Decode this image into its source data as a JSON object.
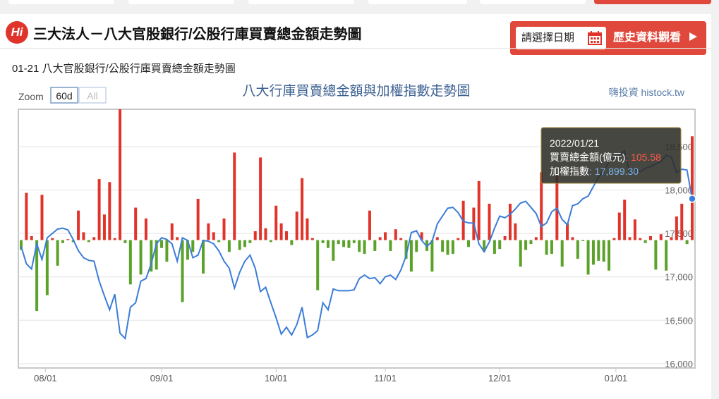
{
  "header": {
    "logo": "Hi",
    "title": "三大法人－八大官股銀行/公股行庫買賣總金額走勢圖",
    "date_picker": "請選擇日期",
    "history_button": "歷史資料觀看"
  },
  "subtitle": "01-21 八大官股銀行/公股行庫買賣總金額走勢圖",
  "chart_data": {
    "type": "combo",
    "title": "八大行庫買賣總金額與加權指數走勢圖",
    "credit": "嗨投資 histock.tw",
    "zoom": {
      "label": "Zoom",
      "buttons": [
        "60d",
        "All"
      ]
    },
    "x": [
      "2021/07/26",
      "2021/07/27",
      "2021/07/28",
      "2021/07/29",
      "2021/07/30",
      "2021/08/02",
      "2021/08/03",
      "2021/08/04",
      "2021/08/05",
      "2021/08/06",
      "2021/08/09",
      "2021/08/10",
      "2021/08/11",
      "2021/08/12",
      "2021/08/13",
      "2021/08/16",
      "2021/08/17",
      "2021/08/18",
      "2021/08/19",
      "2021/08/20",
      "2021/08/23",
      "2021/08/24",
      "2021/08/25",
      "2021/08/26",
      "2021/08/27",
      "2021/08/30",
      "2021/08/31",
      "2021/09/01",
      "2021/09/02",
      "2021/09/03",
      "2021/09/06",
      "2021/09/07",
      "2021/09/08",
      "2021/09/09",
      "2021/09/10",
      "2021/09/13",
      "2021/09/14",
      "2021/09/15",
      "2021/09/16",
      "2021/09/17",
      "2021/09/20",
      "2021/09/21",
      "2021/09/22",
      "2021/09/23",
      "2021/09/24",
      "2021/09/27",
      "2021/09/28",
      "2021/09/29",
      "2021/09/30",
      "2021/10/01",
      "2021/10/04",
      "2021/10/05",
      "2021/10/06",
      "2021/10/07",
      "2021/10/08",
      "2021/10/11",
      "2021/10/12",
      "2021/10/13",
      "2021/10/14",
      "2021/10/15",
      "2021/10/18",
      "2021/10/19",
      "2021/10/20",
      "2021/10/21",
      "2021/10/22",
      "2021/10/25",
      "2021/10/26",
      "2021/10/27",
      "2021/10/28",
      "2021/10/29",
      "2021/11/01",
      "2021/11/02",
      "2021/11/03",
      "2021/11/04",
      "2021/11/05",
      "2021/11/08",
      "2021/11/09",
      "2021/11/10",
      "2021/11/11",
      "2021/11/12",
      "2021/11/15",
      "2021/11/16",
      "2021/11/17",
      "2021/11/18",
      "2021/11/19",
      "2021/11/22",
      "2021/11/23",
      "2021/11/24",
      "2021/11/25",
      "2021/11/26",
      "2021/11/29",
      "2021/11/30",
      "2021/12/01",
      "2021/12/02",
      "2021/12/03",
      "2021/12/06",
      "2021/12/07",
      "2021/12/08",
      "2021/12/09",
      "2021/12/10",
      "2021/12/13",
      "2021/12/14",
      "2021/12/15",
      "2021/12/16",
      "2021/12/17",
      "2021/12/20",
      "2021/12/21",
      "2021/12/22",
      "2021/12/23",
      "2021/12/24",
      "2021/12/27",
      "2021/12/28",
      "2021/12/29",
      "2021/12/30",
      "2021/12/31",
      "2022/01/03",
      "2022/01/04",
      "2022/01/05",
      "2022/01/06",
      "2022/01/07",
      "2022/01/10",
      "2022/01/11",
      "2022/01/12",
      "2022/01/13",
      "2022/01/14",
      "2022/01/17",
      "2022/01/18",
      "2022/01/19",
      "2022/01/20",
      "2022/01/21"
    ],
    "series": [
      {
        "name": "買賣總金額(億元)",
        "type": "bar",
        "positive_color": "#e0342b",
        "negative_color": "#5aa22a",
        "values": [
          -10,
          48,
          4,
          -72,
          46,
          -56,
          2,
          -26,
          -3,
          1,
          -2,
          30,
          8,
          -2,
          3,
          62,
          26,
          59,
          2,
          133,
          -3,
          -45,
          33,
          -35,
          22,
          -32,
          -30,
          -8,
          -22,
          17,
          3,
          -63,
          -20,
          -12,
          42,
          -34,
          17,
          8,
          -2,
          22,
          -12,
          89,
          -10,
          -7,
          -3,
          9,
          84,
          12,
          -2,
          35,
          17,
          9,
          -5,
          29,
          63,
          22,
          2,
          -51,
          -3,
          -8,
          -21,
          -4,
          -7,
          -8,
          -3,
          -12,
          -14,
          30,
          -11,
          3,
          8,
          -11,
          11,
          2,
          -19,
          -32,
          -12,
          8,
          -11,
          -32,
          3,
          -12,
          -15,
          -14,
          2,
          40,
          -7,
          33,
          60,
          -12,
          37,
          -14,
          -9,
          4,
          37,
          17,
          -27,
          -10,
          -4,
          3,
          69,
          -15,
          -14,
          66,
          -27,
          17,
          3,
          -19,
          -1,
          -35,
          -25,
          -21,
          -22,
          -31,
          2,
          28,
          41,
          3,
          21,
          2,
          -3,
          4,
          -30,
          6,
          -31,
          3,
          24,
          37,
          -4,
          105.58
        ]
      },
      {
        "name": "加權指數",
        "type": "line",
        "color": "#3b7dd8",
        "axis": "y2",
        "values": [
          17350,
          17150,
          17090,
          17380,
          17200,
          17450,
          17500,
          17550,
          17560,
          17540,
          17430,
          17300,
          17220,
          17190,
          17180,
          16950,
          16780,
          16620,
          16800,
          16350,
          16290,
          16650,
          16700,
          16950,
          16980,
          17150,
          17380,
          17450,
          17430,
          17380,
          17180,
          17450,
          17420,
          17220,
          17250,
          17420,
          17410,
          17380,
          17300,
          17180,
          17100,
          16870,
          17050,
          17180,
          17250,
          17100,
          16830,
          16880,
          16700,
          16530,
          16340,
          16420,
          16330,
          16450,
          16650,
          16300,
          16330,
          16380,
          16700,
          16620,
          16860,
          16840,
          16840,
          16840,
          16850,
          16980,
          17020,
          16980,
          16990,
          16920,
          17000,
          17020,
          16970,
          17080,
          17240,
          17510,
          17530,
          17420,
          17350,
          17410,
          17610,
          17700,
          17790,
          17800,
          17740,
          17640,
          17620,
          17620,
          17380,
          17290,
          17400,
          17560,
          17700,
          17680,
          17720,
          17780,
          17850,
          17870,
          17800,
          17730,
          17580,
          17620,
          17750,
          17790,
          17660,
          17600,
          17820,
          17840,
          17900,
          17930,
          18040,
          18150,
          18230,
          18320,
          18370,
          18400,
          18450,
          18200,
          18240,
          18210,
          18250,
          18270,
          18300,
          18330,
          18400,
          18380,
          18200,
          18240,
          18230,
          17899.3
        ]
      }
    ],
    "ylim": [
      -130,
      133
    ],
    "y2lim": [
      15950,
      18930
    ],
    "y2ticks": [
      {
        "value": 16000,
        "label": "16,000"
      },
      {
        "value": 16500,
        "label": "16,500"
      },
      {
        "value": 17000,
        "label": "17,000"
      },
      {
        "value": 17500,
        "label": "17,500"
      },
      {
        "value": 18000,
        "label": "18,000"
      },
      {
        "value": 18500,
        "label": "18,500"
      }
    ],
    "xticks": [
      {
        "value": "2021/08/01",
        "label": "08/01"
      },
      {
        "value": "2021/09/01",
        "label": "09/01"
      },
      {
        "value": "2021/10/01",
        "label": "10/01"
      },
      {
        "value": "2021/11/01",
        "label": "11/01"
      },
      {
        "value": "2021/12/01",
        "label": "12/01"
      },
      {
        "value": "2022/01/01",
        "label": "01/01"
      }
    ],
    "grid": true,
    "tooltip": {
      "separator": ": ",
      "index_label": "17,899.30"
    }
  }
}
